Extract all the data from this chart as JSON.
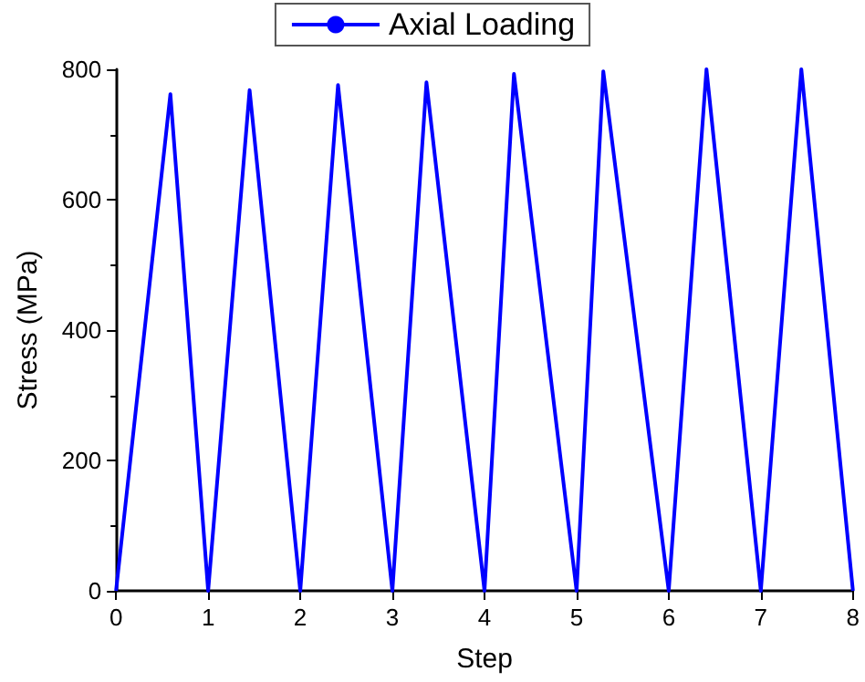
{
  "chart_data": {
    "type": "line",
    "xlabel": "Step",
    "ylabel": "Stress (MPa)",
    "series": [
      {
        "name": "Axial Loading",
        "color": "#0000ff",
        "x": [
          0,
          0.59,
          1,
          1.45,
          2,
          2.41,
          3,
          3.37,
          4,
          4.32,
          5,
          5.29,
          6,
          6.41,
          7,
          7.44,
          8
        ],
        "values": [
          0,
          762,
          0,
          768,
          0,
          776,
          0,
          780,
          0,
          793,
          0,
          797,
          0,
          800,
          0,
          800,
          0
        ]
      }
    ],
    "xlim": [
      0,
      8
    ],
    "xticks": [
      0,
      1,
      2,
      3,
      4,
      5,
      6,
      7,
      8
    ],
    "ylim": [
      0,
      800
    ],
    "yticks": [
      0,
      200,
      400,
      600,
      800
    ],
    "grid": false,
    "legend": "top",
    "marker": "none",
    "line_style": "solid"
  }
}
